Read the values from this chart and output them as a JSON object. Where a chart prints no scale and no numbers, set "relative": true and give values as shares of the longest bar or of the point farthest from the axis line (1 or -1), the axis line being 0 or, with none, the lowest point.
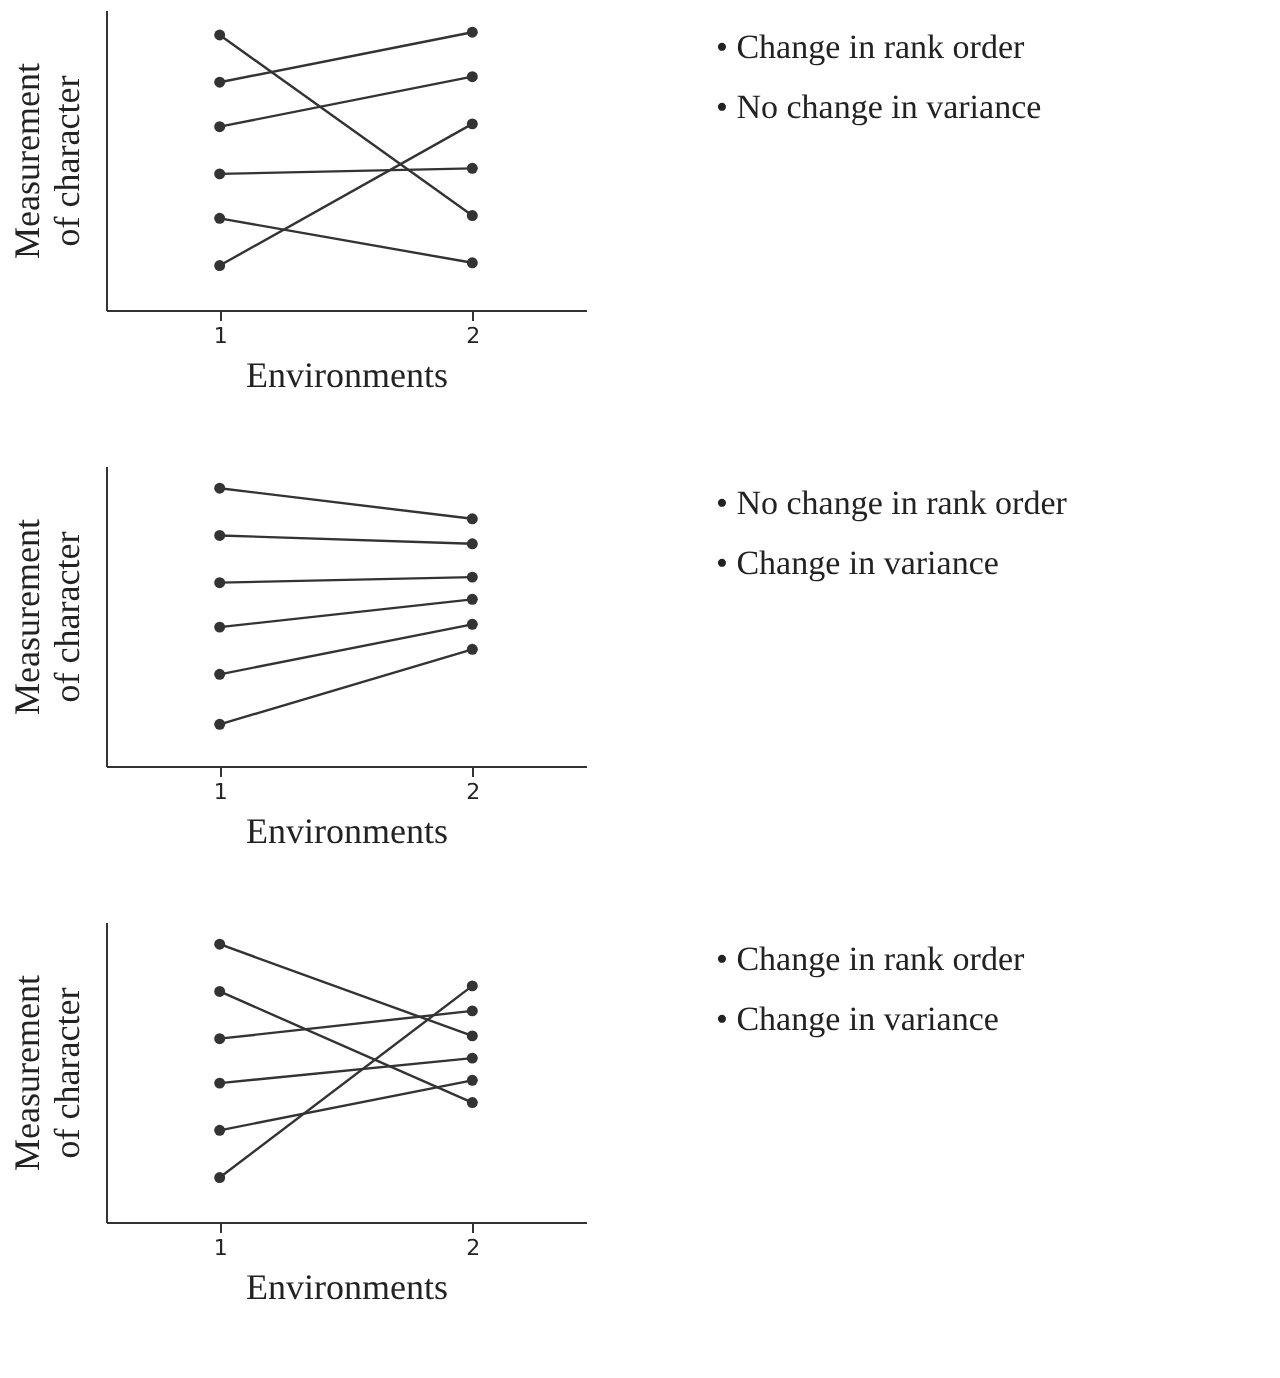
{
  "chart_data": [
    {
      "type": "line",
      "relative": true,
      "xlabel": "Environments",
      "ylabel": "Measurement\nof character",
      "categories": [
        "1",
        "2"
      ],
      "marker": "circle",
      "grid": false,
      "legend": false,
      "annotations": [
        "• Change in rank order",
        "• No change in variance"
      ],
      "series": [
        {
          "color": "#333333",
          "values": [
            0.99,
            0.34
          ]
        },
        {
          "color": "#333333",
          "values": [
            0.82,
            1
          ]
        },
        {
          "color": "#333333",
          "values": [
            0.66,
            0.84
          ]
        },
        {
          "color": "#333333",
          "values": [
            0.49,
            0.51
          ]
        },
        {
          "color": "#333333",
          "values": [
            0.33,
            0.17
          ]
        },
        {
          "color": "#333333",
          "values": [
            0.16,
            0.67
          ]
        }
      ]
    },
    {
      "type": "line",
      "relative": true,
      "xlabel": "Environments",
      "ylabel": "Measurement\nof character",
      "categories": [
        "1",
        "2"
      ],
      "marker": "circle",
      "grid": false,
      "legend": false,
      "annotations": [
        "• No change in rank order",
        "• Change in variance"
      ],
      "series": [
        {
          "color": "#333333",
          "values": [
            1,
            0.89
          ]
        },
        {
          "color": "#333333",
          "values": [
            0.83,
            0.8
          ]
        },
        {
          "color": "#333333",
          "values": [
            0.66,
            0.68
          ]
        },
        {
          "color": "#333333",
          "values": [
            0.5,
            0.6
          ]
        },
        {
          "color": "#333333",
          "values": [
            0.33,
            0.51
          ]
        },
        {
          "color": "#333333",
          "values": [
            0.15,
            0.42
          ]
        }
      ]
    },
    {
      "type": "line",
      "relative": true,
      "xlabel": "Environments",
      "ylabel": "Measurement\nof character",
      "categories": [
        "1",
        "2"
      ],
      "marker": "circle",
      "grid": false,
      "legend": false,
      "annotations": [
        "• Change in rank order",
        "• Change in variance"
      ],
      "series": [
        {
          "color": "#333333",
          "values": [
            1,
            0.67
          ]
        },
        {
          "color": "#333333",
          "values": [
            0.83,
            0.43
          ]
        },
        {
          "color": "#333333",
          "values": [
            0.66,
            0.76
          ]
        },
        {
          "color": "#333333",
          "values": [
            0.5,
            0.59
          ]
        },
        {
          "color": "#333333",
          "values": [
            0.33,
            0.51
          ]
        },
        {
          "color": "#333333",
          "values": [
            0.16,
            0.85
          ]
        }
      ]
    }
  ]
}
